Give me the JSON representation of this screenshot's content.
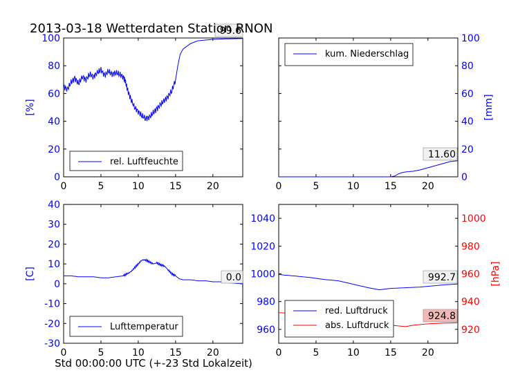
{
  "figure": {
    "title": "2013-03-18 Wetterdaten Station RNON",
    "xlabel": "Std 00:00:00 UTC (+-23 Std Lokalzeit)"
  },
  "chart_data": [
    {
      "type": "line",
      "panel": "top-left",
      "ylabel": "[%]",
      "xlim": [
        0,
        24
      ],
      "ylim": [
        0,
        100
      ],
      "xticks": [
        "0",
        "5",
        "10",
        "15",
        "20"
      ],
      "yticks": [
        "0",
        "20",
        "40",
        "60",
        "80",
        "100"
      ],
      "ytick_color": "#0000ff",
      "legend": {
        "placement": "lower-left",
        "entries": [
          "rel. Luftfeuchte"
        ]
      },
      "last_value_label": "99.6",
      "series": [
        {
          "name": "rel. Luftfeuchte",
          "color": "#0000ff",
          "x": [
            0,
            0.5,
            1,
            1.5,
            2,
            2.5,
            3,
            3.5,
            4,
            4.5,
            5,
            5.5,
            6,
            6.5,
            7,
            7.5,
            8,
            8.3,
            8.6,
            9,
            9.5,
            10,
            10.5,
            11,
            11.5,
            12,
            12.5,
            13,
            13.5,
            14,
            14.5,
            15,
            15.3,
            15.6,
            16,
            16.5,
            17,
            18,
            19,
            20,
            21,
            22,
            23,
            24
          ],
          "y": [
            65,
            63,
            68,
            71,
            67,
            72,
            70,
            74,
            72,
            75,
            77,
            73,
            76,
            74,
            75,
            74,
            72,
            68,
            62,
            56,
            50,
            47,
            44,
            42,
            43,
            46,
            49,
            52,
            55,
            58,
            62,
            70,
            80,
            88,
            92,
            94,
            96,
            98,
            98.5,
            99,
            99.2,
            99.4,
            99.5,
            99.6
          ]
        }
      ]
    },
    {
      "type": "line",
      "panel": "top-right",
      "ylabel": "[mm]",
      "xlim": [
        0,
        24
      ],
      "ylim": [
        0,
        100
      ],
      "xticks": [
        "0",
        "5",
        "10",
        "15",
        "20"
      ],
      "yticks": [
        "0",
        "20",
        "40",
        "60",
        "80",
        "100"
      ],
      "ytick_color": "#0000ff",
      "legend": {
        "placement": "top-left",
        "entries": [
          "kum. Niederschlag"
        ]
      },
      "last_value_label": "11.60",
      "series": [
        {
          "name": "kum. Niederschlag",
          "color": "#0000ff",
          "x": [
            0,
            15,
            15.5,
            16,
            16.5,
            17,
            18,
            19,
            20,
            21,
            22,
            23,
            24
          ],
          "y": [
            0,
            0,
            0.5,
            2,
            3,
            3.5,
            4,
            5,
            6.5,
            8,
            9.5,
            11,
            11.6
          ]
        }
      ]
    },
    {
      "type": "line",
      "panel": "bottom-left",
      "ylabel": "[C]",
      "xlim": [
        0,
        24
      ],
      "ylim": [
        -30,
        40
      ],
      "xticks": [
        "0",
        "5",
        "10",
        "15",
        "20"
      ],
      "yticks": [
        "-30",
        "-20",
        "-10",
        "0",
        "10",
        "20",
        "30",
        "40"
      ],
      "ytick_color": "#0000ff",
      "legend": {
        "placement": "lower-left",
        "entries": [
          "Lufttemperatur"
        ]
      },
      "last_value_label": "0.0",
      "series": [
        {
          "name": "Lufttemperatur",
          "color": "#0000ff",
          "x": [
            0,
            1,
            2,
            3,
            4,
            5,
            6,
            7,
            8,
            8.5,
            9,
            9.5,
            10,
            10.5,
            11,
            11.5,
            12,
            12.5,
            13,
            13.5,
            14,
            14.5,
            15,
            15.5,
            16,
            17,
            18,
            19,
            20,
            21,
            22,
            23,
            24
          ],
          "y": [
            4,
            4,
            3.5,
            3.5,
            3.5,
            3,
            3,
            3.5,
            4,
            5,
            6,
            8,
            10,
            12,
            12,
            11,
            10,
            10.5,
            9.5,
            9,
            7,
            5,
            4,
            2.5,
            2,
            2,
            1.5,
            1.5,
            1,
            1,
            0.5,
            0.2,
            0.0
          ]
        }
      ]
    },
    {
      "type": "line",
      "panel": "bottom-right",
      "xlim": [
        0,
        24
      ],
      "ylim": [
        950,
        1050
      ],
      "xticks": [
        "0",
        "5",
        "10",
        "15",
        "20"
      ],
      "yticks": [
        "960",
        "980",
        "1000",
        "1020",
        "1040"
      ],
      "ytick_color": "#0000ff",
      "right_axis": {
        "ylabel": "[hPa]",
        "ylim": [
          910,
          1010
        ],
        "yticks": [
          "920",
          "940",
          "960",
          "980",
          "1000"
        ],
        "color": "#ff0000"
      },
      "legend": {
        "placement": "lower-left",
        "entries": [
          "red. Luftdruck",
          "abs. Luftdruck"
        ]
      },
      "last_value_labels": [
        "992.7",
        "924.8"
      ],
      "series": [
        {
          "name": "red. Luftdruck",
          "color": "#0000ff",
          "axis": "left",
          "x": [
            0,
            2,
            4,
            6,
            8,
            10,
            12,
            13.5,
            15,
            17,
            19,
            21,
            22,
            24
          ],
          "y": [
            999.5,
            998.5,
            997.5,
            996,
            995,
            992.5,
            990,
            988.5,
            989.5,
            990,
            990.5,
            991.5,
            992,
            992.7
          ]
        },
        {
          "name": "abs. Luftdruck",
          "color": "#ff0000",
          "axis": "right",
          "x": [
            0,
            2,
            4,
            6,
            8,
            10,
            12,
            14,
            16,
            17,
            18,
            20,
            22,
            24
          ],
          "y": [
            932,
            931.5,
            930.5,
            929.5,
            928,
            927,
            925.5,
            923.5,
            922.5,
            922,
            923,
            924,
            924.5,
            924.8
          ]
        }
      ]
    }
  ]
}
